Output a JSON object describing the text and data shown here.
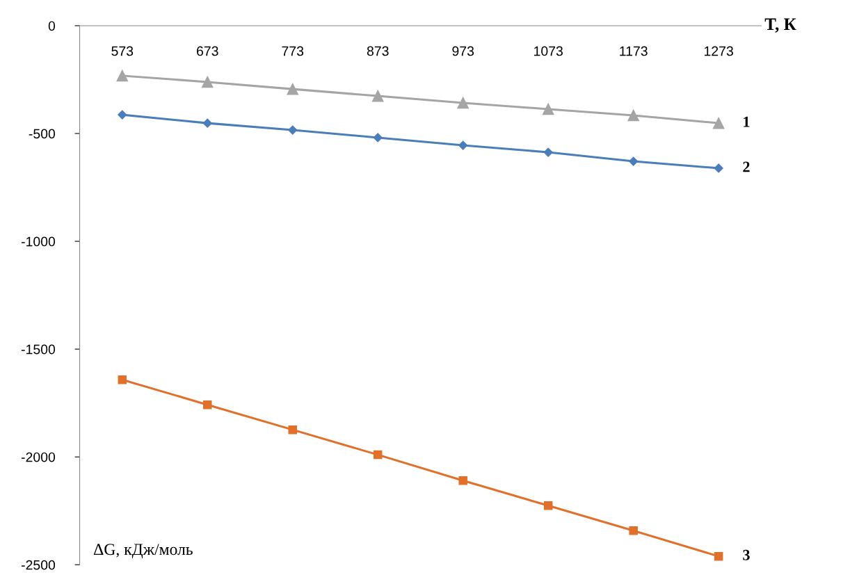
{
  "chart_data": {
    "type": "line",
    "xlabel": "T, К",
    "ylabel": "ΔG, кДж/моль",
    "categories": [
      "573",
      "673",
      "773",
      "873",
      "973",
      "1073",
      "1173",
      "1273"
    ],
    "series": [
      {
        "name": "1",
        "color": "#a5a5a5",
        "marker": "triangle",
        "values": [
          -232,
          -261,
          -294,
          -326,
          -358,
          -387,
          -416,
          -452
        ]
      },
      {
        "name": "2",
        "color": "#4a7ebb",
        "marker": "diamond",
        "values": [
          -413,
          -452,
          -484,
          -519,
          -555,
          -587,
          -629,
          -661
        ]
      },
      {
        "name": "3",
        "color": "#e0702a",
        "marker": "square",
        "values": [
          -1642,
          -1758,
          -1874,
          -1990,
          -2110,
          -2226,
          -2342,
          -2461
        ]
      }
    ],
    "ylim": [
      -2500,
      0
    ],
    "yticks": [
      -2500,
      -2000,
      -1500,
      -1000,
      -500,
      0
    ],
    "grid": false,
    "legend": false,
    "line_style": "solid"
  }
}
